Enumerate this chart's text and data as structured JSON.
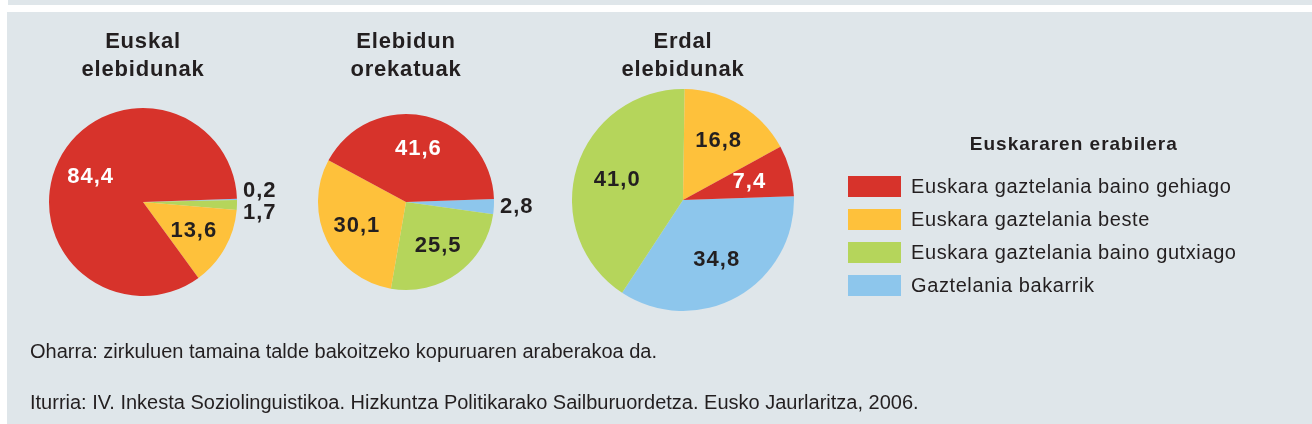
{
  "chart_data": [
    {
      "type": "pie",
      "title": "Euskal elebidunak",
      "categories": [
        null,
        null,
        null,
        null
      ],
      "values": [
        84.4,
        13.6,
        1.7,
        0.2
      ],
      "colors": [
        "#d7332b",
        "#fec13b",
        "#b5d55b",
        "#8dc6ec"
      ],
      "value_labels": [
        "84,4",
        "13,6",
        "1,7",
        "0,2"
      ],
      "annotations": [
        "Oharra: zirkuluen tamaina talde bakoitzeko kopuruaren araberakoa da.",
        "Iturria: IV. Inkesta Soziolinguistikoa. Hizkuntza Politikarako Sailburuordetza. Eusko Jaurlaritza, 2006."
      ]
    },
    {
      "type": "pie",
      "title": "Elebidun orekatuak",
      "categories": [
        null,
        null,
        null,
        null
      ],
      "values": [
        41.6,
        30.1,
        25.5,
        2.8
      ],
      "colors": [
        "#d7332b",
        "#fec13b",
        "#b5d55b",
        "#8dc6ec"
      ],
      "value_labels": [
        "41,6",
        "30,1",
        "25,5",
        "2,8"
      ]
    },
    {
      "type": "pie",
      "title": "Erdal elebidunak",
      "categories": [
        "Euskara gaztelania baino gehiago",
        "Euskara gaztelania beste",
        "Euskara gaztelania baino gutxiago",
        "Gaztelania bakarrik"
      ],
      "values": [
        7.4,
        16.8,
        41.0,
        34.8
      ],
      "colors": [
        "#d7332b",
        "#fec13b",
        "#b5d55b",
        "#8dc6ec"
      ],
      "value_labels": [
        "7,4",
        "16,8",
        "41,0",
        "34,8"
      ],
      "legend_title": "Euskararen erabilera",
      "legend": "right"
    }
  ]
}
